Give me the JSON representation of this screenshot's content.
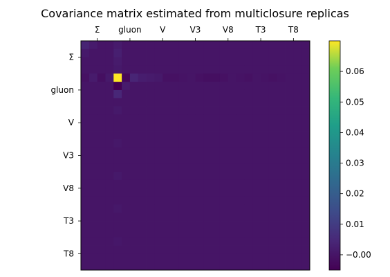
{
  "chart_data": {
    "type": "heatmap",
    "title": "Covariance matrix estimated from multiclosure replicas",
    "labels": [
      "Σ",
      "gluon",
      "V",
      "V3",
      "V8",
      "T3",
      "T8"
    ],
    "bins_per_label": 4,
    "colormap": "viridis",
    "colorbar": {
      "min": -0.005,
      "max": 0.07,
      "ticks": [
        -0.0,
        0.01,
        0.02,
        0.03,
        0.04,
        0.05,
        0.06
      ],
      "tick_labels": [
        "−0.00",
        "0.01",
        "0.02",
        "0.03",
        "0.04",
        "0.05",
        "0.06"
      ]
    },
    "background_value": 0.0,
    "values": [
      {
        "row": 4,
        "col": 4,
        "value": 0.07
      },
      {
        "row": 5,
        "col": 4,
        "value": -0.005
      },
      {
        "row": 4,
        "col": 5,
        "value": -0.003
      },
      {
        "row": 3,
        "col": 4,
        "value": 0.001
      },
      {
        "row": 4,
        "col": 3,
        "value": 0.001
      },
      {
        "row": 1,
        "col": 4,
        "value": 0.0025
      },
      {
        "row": 4,
        "col": 1,
        "value": 0.0015
      },
      {
        "row": 0,
        "col": 0,
        "value": 0.0035
      },
      {
        "row": 0,
        "col": 1,
        "value": 0.0015
      },
      {
        "row": 1,
        "col": 0,
        "value": 0.001
      },
      {
        "row": 4,
        "col": 6,
        "value": 0.004
      },
      {
        "row": 6,
        "col": 4,
        "value": 0.0045
      },
      {
        "row": 5,
        "col": 5,
        "value": 0.0015
      },
      {
        "row": 4,
        "col": 7,
        "value": 0.002
      },
      {
        "row": 0,
        "col": 4,
        "value": 0.0015
      },
      {
        "row": 2,
        "col": 4,
        "value": 0.0015
      },
      {
        "row": 4,
        "col": 0,
        "value": -0.001
      },
      {
        "row": 4,
        "col": 2,
        "value": -0.0015
      },
      {
        "row": 4,
        "col": 8,
        "value": 0.0015
      },
      {
        "row": 4,
        "col": 9,
        "value": 0.001
      },
      {
        "row": 4,
        "col": 10,
        "value": -0.001
      },
      {
        "row": 4,
        "col": 11,
        "value": -0.001
      },
      {
        "row": 4,
        "col": 12,
        "value": -0.0005
      },
      {
        "row": 4,
        "col": 14,
        "value": -0.001
      },
      {
        "row": 4,
        "col": 15,
        "value": -0.0015
      },
      {
        "row": 4,
        "col": 16,
        "value": -0.0015
      },
      {
        "row": 4,
        "col": 17,
        "value": -0.001
      },
      {
        "row": 4,
        "col": 19,
        "value": -0.0005
      },
      {
        "row": 4,
        "col": 20,
        "value": -0.001
      },
      {
        "row": 4,
        "col": 22,
        "value": -0.0005
      },
      {
        "row": 4,
        "col": 23,
        "value": -0.001
      },
      {
        "row": 4,
        "col": 24,
        "value": -0.0005
      },
      {
        "row": 8,
        "col": 4,
        "value": 0.001
      },
      {
        "row": 12,
        "col": 4,
        "value": 0.0008
      },
      {
        "row": 16,
        "col": 4,
        "value": 0.001
      },
      {
        "row": 20,
        "col": 4,
        "value": 0.0008
      },
      {
        "row": 24,
        "col": 4,
        "value": 0.0006
      }
    ]
  }
}
